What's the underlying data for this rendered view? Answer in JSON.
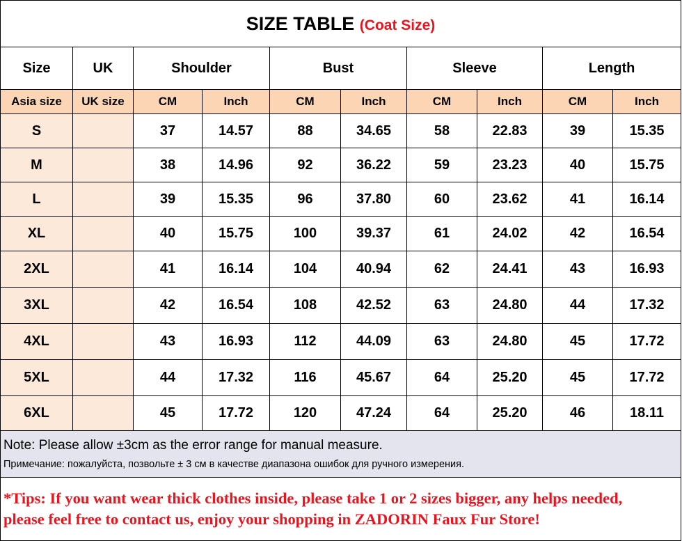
{
  "title": {
    "main": "SIZE TABLE",
    "sub": "(Coat Size)"
  },
  "headers": [
    "Size",
    "UK",
    "Shoulder",
    "Bust",
    "Sleeve",
    "Length"
  ],
  "subheaders": [
    "Asia size",
    "UK size",
    "CM",
    "Inch",
    "CM",
    "Inch",
    "CM",
    "Inch",
    "CM",
    "Inch"
  ],
  "rows": [
    [
      "S",
      "",
      "37",
      "14.57",
      "88",
      "34.65",
      "58",
      "22.83",
      "39",
      "15.35"
    ],
    [
      "M",
      "",
      "38",
      "14.96",
      "92",
      "36.22",
      "59",
      "23.23",
      "40",
      "15.75"
    ],
    [
      "L",
      "",
      "39",
      "15.35",
      "96",
      "37.80",
      "60",
      "23.62",
      "41",
      "16.14"
    ],
    [
      "XL",
      "",
      "40",
      "15.75",
      "100",
      "39.37",
      "61",
      "24.02",
      "42",
      "16.54"
    ],
    [
      "2XL",
      "",
      "41",
      "16.14",
      "104",
      "40.94",
      "62",
      "24.41",
      "43",
      "16.93"
    ],
    [
      "3XL",
      "",
      "42",
      "16.54",
      "108",
      "42.52",
      "63",
      "24.80",
      "44",
      "17.32"
    ],
    [
      "4XL",
      "",
      "43",
      "16.93",
      "112",
      "44.09",
      "63",
      "24.80",
      "45",
      "17.72"
    ],
    [
      "5XL",
      "",
      "44",
      "17.32",
      "116",
      "45.67",
      "64",
      "25.20",
      "45",
      "17.72"
    ],
    [
      "6XL",
      "",
      "45",
      "17.72",
      "120",
      "47.24",
      "64",
      "25.20",
      "46",
      "18.11"
    ]
  ],
  "note": {
    "en": "Note: Please allow ±3cm as the error range for manual measure.",
    "ru": "Примечание: пожалуйста, позвольте ± 3 см в качестве диапазона ошибок для ручного измерения."
  },
  "tips": {
    "line1": "*Tips:  If you want wear thick clothes inside,  please take 1 or 2 sizes bigger, any helps needed,",
    "line2": "please feel free to contact us, enjoy your shopping in ZADORIN Faux Fur Store!"
  },
  "colors": {
    "subheader_bg": "#fcd5b4",
    "size_col_bg": "#fde9d9",
    "note_bg": "#e4e4ee",
    "accent_red": "#e8141e"
  }
}
